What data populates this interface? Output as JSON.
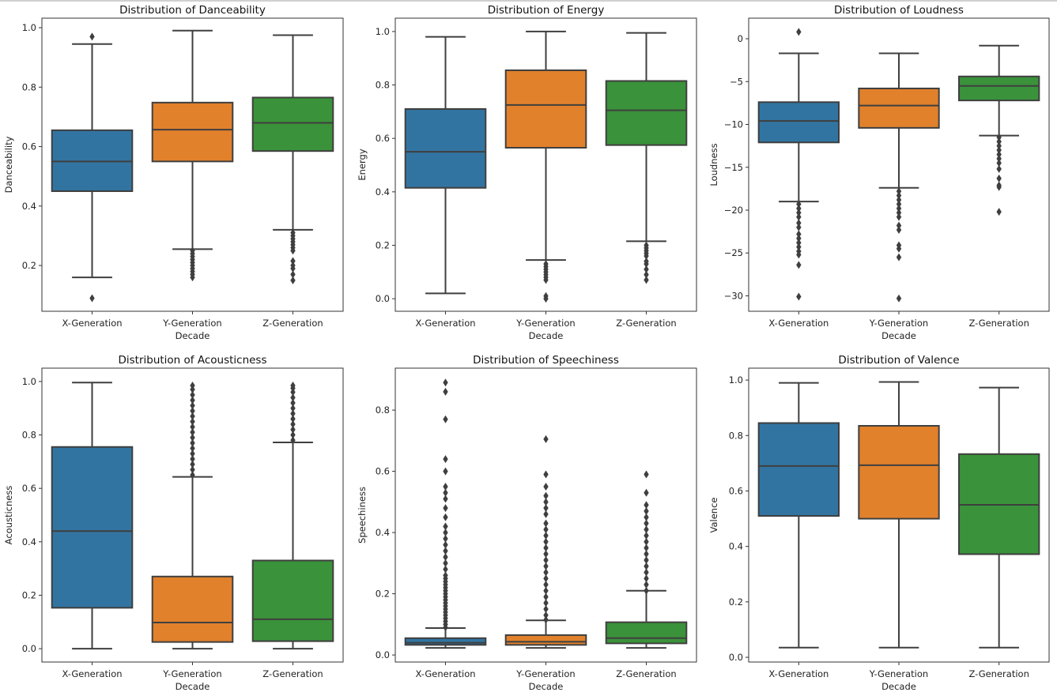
{
  "chart_data": [
    {
      "type": "box",
      "title": "Distribution of Danceability",
      "xlabel": "Decade",
      "ylabel": "Danceability",
      "categories": [
        "X-Generation",
        "Y-Generation",
        "Z-Generation"
      ],
      "ylim": [
        0.046,
        1.032
      ],
      "yticks": [
        0.2,
        0.4,
        0.6,
        0.8,
        1.0
      ],
      "ytick_labels": [
        "0.2",
        "0.4",
        "0.6",
        "0.8",
        "1.0"
      ],
      "boxes": [
        {
          "whislo": 0.16,
          "q1": 0.45,
          "med": 0.55,
          "q3": 0.655,
          "whishi": 0.945,
          "fliers": [
            0.97,
            0.09
          ]
        },
        {
          "whislo": 0.255,
          "q1": 0.55,
          "med": 0.657,
          "q3": 0.748,
          "whishi": 0.99,
          "fliers": [
            0.25,
            0.24,
            0.23,
            0.22,
            0.21,
            0.2,
            0.19,
            0.18,
            0.17,
            0.16
          ]
        },
        {
          "whislo": 0.32,
          "q1": 0.585,
          "med": 0.68,
          "q3": 0.765,
          "whishi": 0.975,
          "fliers": [
            0.31,
            0.3,
            0.29,
            0.28,
            0.27,
            0.26,
            0.25,
            0.215,
            0.2,
            0.19,
            0.17,
            0.15
          ]
        }
      ]
    },
    {
      "type": "box",
      "title": "Distribution of Energy",
      "xlabel": "Decade",
      "ylabel": "Energy",
      "categories": [
        "X-Generation",
        "Y-Generation",
        "Z-Generation"
      ],
      "ylim": [
        -0.047,
        1.05
      ],
      "yticks": [
        0.0,
        0.2,
        0.4,
        0.6,
        0.8,
        1.0
      ],
      "ytick_labels": [
        "0.0",
        "0.2",
        "0.4",
        "0.6",
        "0.8",
        "1.0"
      ],
      "boxes": [
        {
          "whislo": 0.02,
          "q1": 0.415,
          "med": 0.55,
          "q3": 0.71,
          "whishi": 0.98,
          "fliers": []
        },
        {
          "whislo": 0.145,
          "q1": 0.565,
          "med": 0.725,
          "q3": 0.855,
          "whishi": 1.0,
          "fliers": [
            0.13,
            0.12,
            0.11,
            0.1,
            0.09,
            0.08,
            0.07,
            0.01,
            0.0
          ]
        },
        {
          "whislo": 0.215,
          "q1": 0.575,
          "med": 0.705,
          "q3": 0.815,
          "whishi": 0.995,
          "fliers": [
            0.2,
            0.19,
            0.18,
            0.17,
            0.16,
            0.14,
            0.13,
            0.11,
            0.09,
            0.07
          ]
        }
      ]
    },
    {
      "type": "box",
      "title": "Distribution of Loudness",
      "xlabel": "Decade",
      "ylabel": "Loudness",
      "categories": [
        "X-Generation",
        "Y-Generation",
        "Z-Generation"
      ],
      "ylim": [
        -31.8,
        2.4
      ],
      "yticks": [
        -30,
        -25,
        -20,
        -15,
        -10,
        -5,
        0
      ],
      "ytick_labels": [
        "−30",
        "−25",
        "−20",
        "−15",
        "−10",
        "−5",
        "0"
      ],
      "boxes": [
        {
          "whislo": -19.0,
          "q1": -12.1,
          "med": -9.6,
          "q3": -7.4,
          "whishi": -1.7,
          "fliers": [
            0.8,
            -19.3,
            -19.8,
            -20.3,
            -20.8,
            -21.5,
            -22.0,
            -22.8,
            -23.3,
            -23.8,
            -24.3,
            -24.8,
            -25.2,
            -26.4,
            -30.1
          ]
        },
        {
          "whislo": -17.4,
          "q1": -10.4,
          "med": -7.8,
          "q3": -5.8,
          "whishi": -1.7,
          "fliers": [
            -17.8,
            -18.3,
            -18.8,
            -19.3,
            -19.8,
            -20.3,
            -20.8,
            -21.8,
            -22.3,
            -24.1,
            -24.5,
            -25.5,
            -30.3
          ]
        },
        {
          "whislo": -11.3,
          "q1": -7.2,
          "med": -5.5,
          "q3": -4.4,
          "whishi": -0.8,
          "fliers": [
            -11.5,
            -12.0,
            -12.5,
            -13.0,
            -13.5,
            -14.0,
            -14.5,
            -15.2,
            -16.3,
            -17.1,
            -17.3,
            -20.2
          ]
        }
      ]
    },
    {
      "type": "box",
      "title": "Distribution of Acousticness",
      "xlabel": "Decade",
      "ylabel": "Acousticness",
      "categories": [
        "X-Generation",
        "Y-Generation",
        "Z-Generation"
      ],
      "ylim": [
        -0.05,
        1.05
      ],
      "yticks": [
        0.0,
        0.2,
        0.4,
        0.6,
        0.8,
        1.0
      ],
      "ytick_labels": [
        "0.0",
        "0.2",
        "0.4",
        "0.6",
        "0.8",
        "1.0"
      ],
      "boxes": [
        {
          "whislo": 0.0,
          "q1": 0.153,
          "med": 0.44,
          "q3": 0.755,
          "whishi": 0.996,
          "fliers": []
        },
        {
          "whislo": 0.0,
          "q1": 0.025,
          "med": 0.098,
          "q3": 0.27,
          "whishi": 0.643,
          "fliers": [
            0.65,
            0.67,
            0.69,
            0.71,
            0.73,
            0.75,
            0.77,
            0.79,
            0.81,
            0.83,
            0.85,
            0.87,
            0.89,
            0.91,
            0.93,
            0.95,
            0.97,
            0.985
          ]
        },
        {
          "whislo": 0.0,
          "q1": 0.028,
          "med": 0.11,
          "q3": 0.33,
          "whishi": 0.772,
          "fliers": [
            0.78,
            0.8,
            0.82,
            0.84,
            0.86,
            0.88,
            0.9,
            0.92,
            0.94,
            0.96,
            0.975,
            0.985
          ]
        }
      ]
    },
    {
      "type": "box",
      "title": "Distribution of Speechiness",
      "xlabel": "Decade",
      "ylabel": "Speechiness",
      "categories": [
        "X-Generation",
        "Y-Generation",
        "Z-Generation"
      ],
      "ylim": [
        -0.023,
        0.937
      ],
      "yticks": [
        0.0,
        0.2,
        0.4,
        0.6,
        0.8
      ],
      "ytick_labels": [
        "0.0",
        "0.2",
        "0.4",
        "0.6",
        "0.8"
      ],
      "boxes": [
        {
          "whislo": 0.023,
          "q1": 0.033,
          "med": 0.04,
          "q3": 0.055,
          "whishi": 0.088,
          "fliers": [
            0.09,
            0.1,
            0.11,
            0.12,
            0.13,
            0.14,
            0.15,
            0.16,
            0.17,
            0.18,
            0.19,
            0.2,
            0.21,
            0.22,
            0.23,
            0.24,
            0.25,
            0.26,
            0.28,
            0.3,
            0.32,
            0.34,
            0.36,
            0.38,
            0.4,
            0.42,
            0.45,
            0.48,
            0.51,
            0.53,
            0.55,
            0.6,
            0.64,
            0.77,
            0.86,
            0.89
          ]
        },
        {
          "whislo": 0.023,
          "q1": 0.033,
          "med": 0.043,
          "q3": 0.065,
          "whishi": 0.113,
          "fliers": [
            0.115,
            0.13,
            0.15,
            0.17,
            0.19,
            0.21,
            0.23,
            0.25,
            0.27,
            0.29,
            0.31,
            0.33,
            0.35,
            0.37,
            0.39,
            0.41,
            0.43,
            0.46,
            0.48,
            0.5,
            0.52,
            0.55,
            0.59,
            0.705
          ]
        },
        {
          "whislo": 0.023,
          "q1": 0.038,
          "med": 0.055,
          "q3": 0.107,
          "whishi": 0.21,
          "fliers": [
            0.21,
            0.23,
            0.25,
            0.27,
            0.29,
            0.31,
            0.33,
            0.35,
            0.37,
            0.39,
            0.41,
            0.43,
            0.45,
            0.47,
            0.49,
            0.53,
            0.59
          ]
        }
      ]
    },
    {
      "type": "box",
      "title": "Distribution of Valence",
      "xlabel": "Decade",
      "ylabel": "Valence",
      "categories": [
        "X-Generation",
        "Y-Generation",
        "Z-Generation"
      ],
      "ylim": [
        -0.017,
        1.043
      ],
      "yticks": [
        0.0,
        0.2,
        0.4,
        0.6,
        0.8,
        1.0
      ],
      "ytick_labels": [
        "0.0",
        "0.2",
        "0.4",
        "0.6",
        "0.8",
        "1.0"
      ],
      "boxes": [
        {
          "whislo": 0.035,
          "q1": 0.51,
          "med": 0.69,
          "q3": 0.845,
          "whishi": 0.99,
          "fliers": []
        },
        {
          "whislo": 0.035,
          "q1": 0.5,
          "med": 0.693,
          "q3": 0.835,
          "whishi": 0.993,
          "fliers": []
        },
        {
          "whislo": 0.035,
          "q1": 0.372,
          "med": 0.55,
          "q3": 0.733,
          "whishi": 0.973,
          "fliers": []
        }
      ]
    }
  ],
  "colors": {
    "box": [
      "#3274a1",
      "#e1812c",
      "#3a923a"
    ],
    "line": "#3f3f3f",
    "axis": "#333333"
  }
}
